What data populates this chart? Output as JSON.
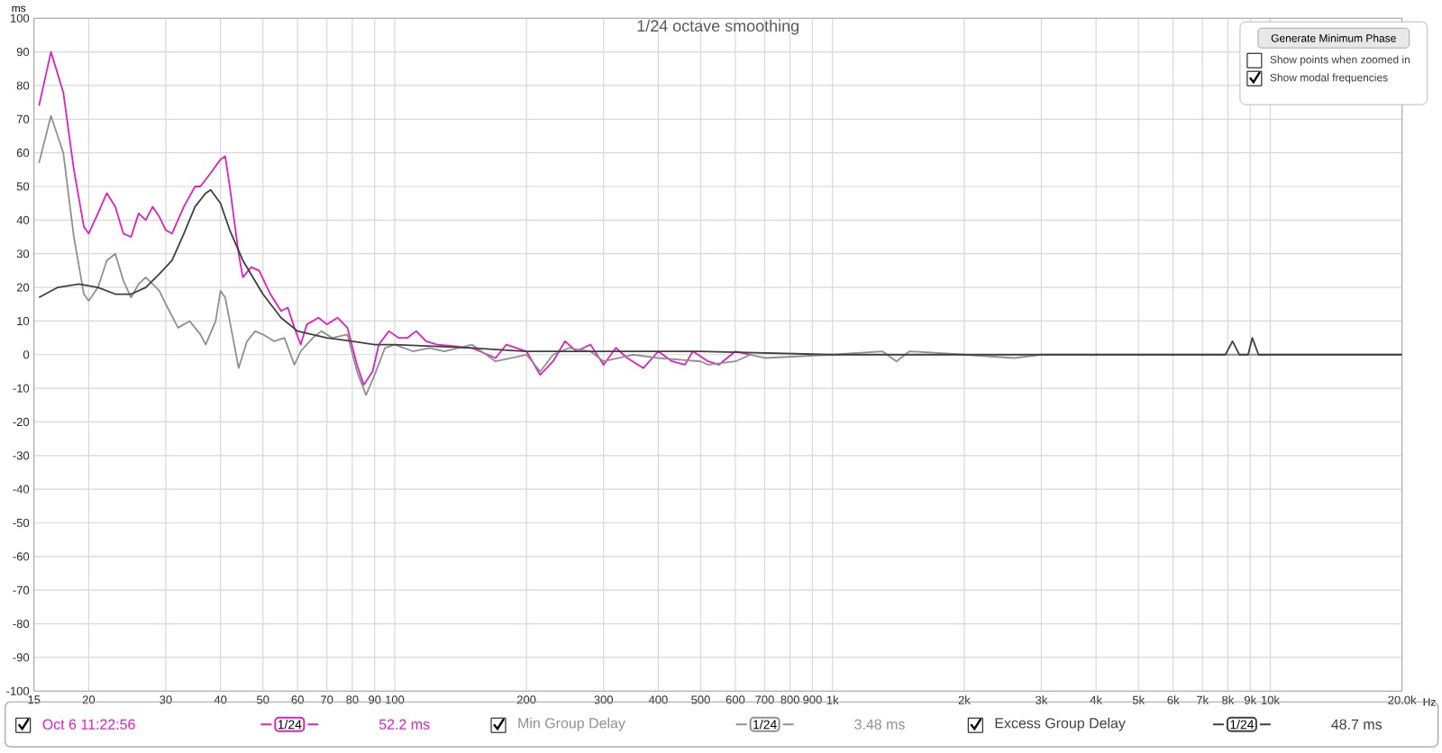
{
  "chart_data": {
    "type": "line",
    "title": "1/24 octave smoothing",
    "xlabel": "Hz",
    "ylabel": "ms",
    "log": "x",
    "grid": true,
    "legend": "bottom",
    "marker": "none",
    "line_style": "solid",
    "xlim": [
      15,
      20000
    ],
    "ylim": [
      -100,
      100
    ],
    "xticks": [
      15,
      20,
      30,
      40,
      50,
      60,
      70,
      80,
      90,
      100,
      200,
      300,
      400,
      500,
      600,
      700,
      800,
      900,
      {
        "value": 1000,
        "label": "1k"
      },
      {
        "value": 2000,
        "label": "2k"
      },
      {
        "value": 3000,
        "label": "3k"
      },
      {
        "value": 4000,
        "label": "4k"
      },
      {
        "value": 5000,
        "label": "5k"
      },
      {
        "value": 6000,
        "label": "6k"
      },
      {
        "value": 7000,
        "label": "7k"
      },
      {
        "value": 8000,
        "label": "8k"
      },
      {
        "value": 9000,
        "label": "9k"
      },
      {
        "value": 10000,
        "label": "10k"
      },
      {
        "value": 20000,
        "label": "20.0k"
      }
    ],
    "yticks": [
      -100,
      -90,
      -80,
      -70,
      -60,
      -50,
      -40,
      -30,
      -20,
      -10,
      0,
      10,
      20,
      30,
      40,
      50,
      60,
      70,
      80,
      90,
      100
    ],
    "series": [
      {
        "name": "Oct 6 11:22:56",
        "color": "#e020c0",
        "x": [
          15.4,
          16.4,
          17.5,
          18.5,
          19.5,
          20,
          21,
          22,
          23,
          24,
          25,
          26,
          27,
          28,
          29,
          30,
          31,
          33,
          35,
          36,
          38,
          40,
          41,
          42,
          44,
          45,
          47,
          49,
          52,
          55,
          57,
          59,
          61,
          63,
          67,
          70,
          74,
          78,
          82,
          85,
          89,
          92,
          97,
          102,
          107,
          112,
          118,
          125,
          150,
          170,
          180,
          200,
          215,
          230,
          245,
          260,
          280,
          300,
          320,
          340,
          370,
          400,
          430,
          460,
          480,
          520,
          550,
          600,
          650
        ],
        "values": [
          74,
          90,
          78,
          55,
          38,
          36,
          42,
          48,
          44,
          36,
          35,
          42,
          40,
          44,
          41,
          37,
          36,
          44,
          50,
          50,
          54,
          58,
          59,
          50,
          30,
          23,
          26,
          25,
          18,
          13,
          14,
          8,
          3,
          9,
          11,
          9,
          11,
          8,
          -3,
          -9,
          -5,
          3,
          7,
          5,
          5,
          7,
          4,
          3,
          2,
          -1,
          3,
          1,
          -6,
          -2,
          4,
          1,
          3,
          -3,
          2,
          -1,
          -4,
          1,
          -2,
          -3,
          1,
          -2,
          -3,
          1,
          0
        ]
      },
      {
        "name": "Min Group Delay",
        "color": "#909090",
        "x": [
          15.4,
          16.4,
          17.5,
          18.5,
          19.5,
          20,
          21,
          22,
          23,
          24,
          25,
          26,
          27,
          28,
          29,
          30,
          32,
          34,
          36,
          37,
          39,
          40,
          41,
          43,
          44,
          46,
          48,
          50,
          53,
          56,
          59,
          61,
          65,
          68,
          72,
          78,
          82,
          86,
          90,
          95,
          100,
          110,
          120,
          130,
          150,
          170,
          200,
          215,
          230,
          250,
          280,
          300,
          350,
          400,
          500,
          520,
          600,
          650,
          700,
          1000,
          1300,
          1400,
          1500,
          2000,
          2600,
          3000,
          20000
        ],
        "values": [
          57,
          71,
          60,
          35,
          18,
          16,
          20,
          28,
          30,
          22,
          17,
          21,
          23,
          21,
          19,
          15,
          8,
          10,
          6,
          3,
          10,
          19,
          17,
          3,
          -4,
          4,
          7,
          6,
          4,
          5,
          -3,
          1,
          5,
          7,
          5,
          6,
          -5,
          -12,
          -6,
          2,
          3,
          1,
          2,
          1,
          3,
          -2,
          0,
          -5,
          0,
          2,
          1,
          -2,
          0,
          -1,
          -2,
          -3,
          -2,
          0,
          -1,
          0,
          1,
          -2,
          1,
          0,
          -1,
          0,
          0
        ]
      },
      {
        "name": "Excess Group Delay",
        "color": "#404040",
        "x": [
          15.4,
          17,
          19,
          21,
          23,
          25,
          27,
          29,
          31,
          33,
          35,
          37,
          38,
          40,
          42,
          45,
          50,
          55,
          60,
          70,
          80,
          90,
          100,
          150,
          200,
          500,
          1000,
          7900,
          8200,
          8500,
          8900,
          9100,
          9400,
          20000
        ],
        "values": [
          17,
          20,
          21,
          20,
          18,
          18,
          20,
          24,
          28,
          36,
          44,
          48,
          49,
          45,
          37,
          28,
          18,
          11,
          7,
          5,
          4,
          3,
          3,
          2,
          1,
          1,
          0,
          0,
          4,
          0,
          0,
          5,
          0,
          0
        ]
      }
    ],
    "annotations": [
      "1/24",
      "52.2 ms",
      "1/24",
      "3.48 ms",
      "1/24",
      "48.7 ms",
      "Generate Minimum Phase",
      "Show points when zoomed in",
      "Show modal frequencies"
    ]
  }
}
